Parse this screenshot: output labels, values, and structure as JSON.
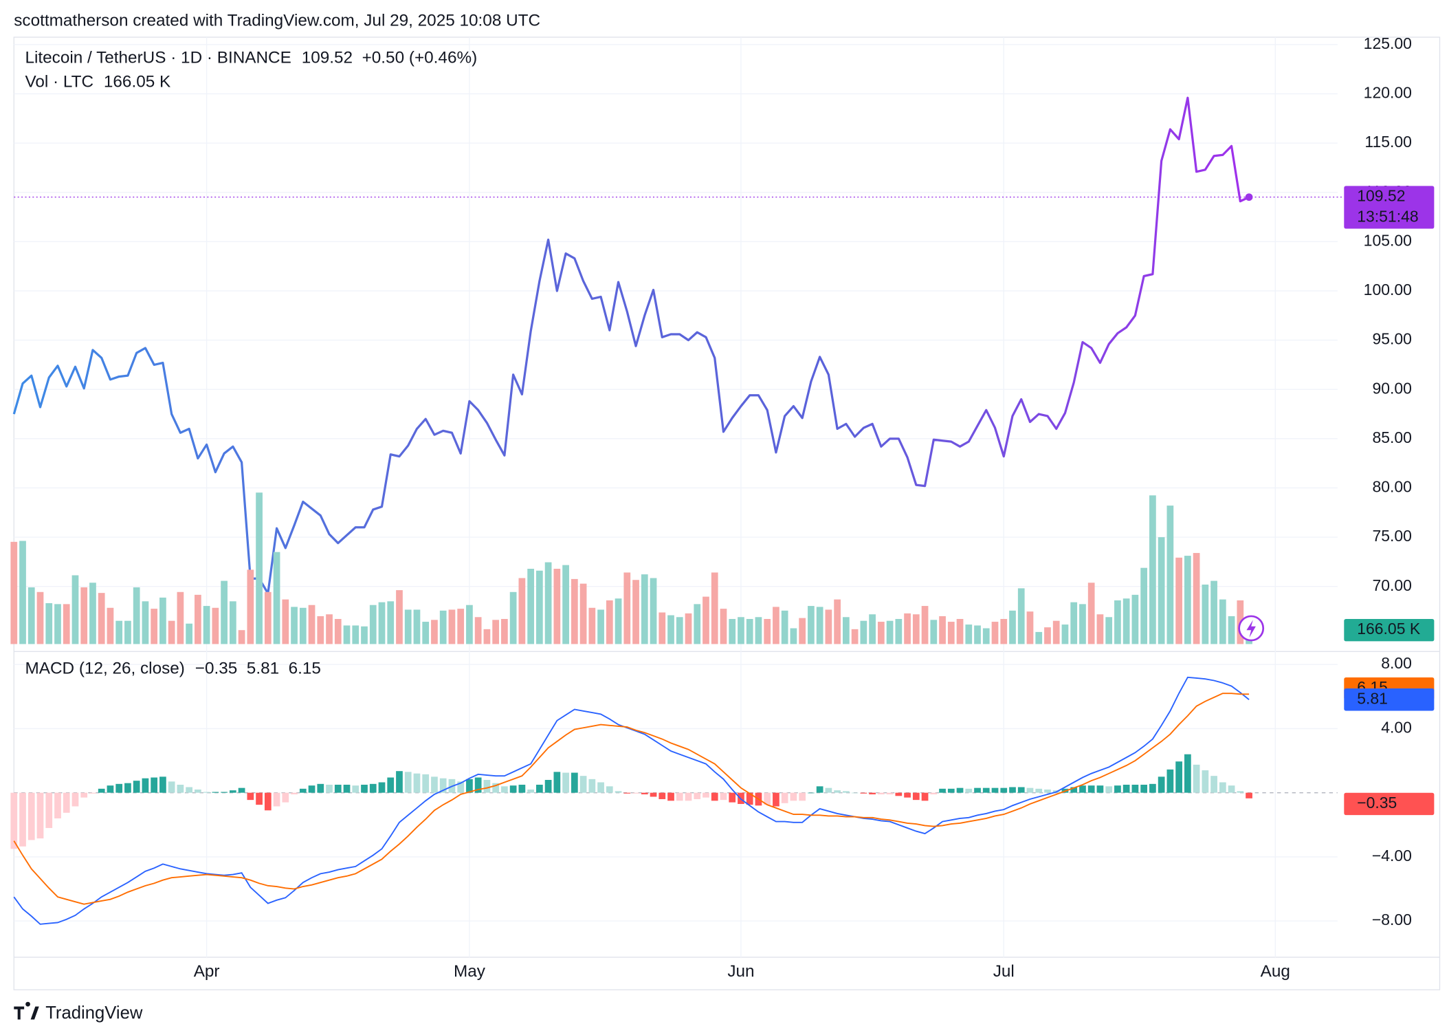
{
  "header": {
    "attribution": "scottmatherson created with TradingView.com, Jul 29, 2025 10:08 UTC"
  },
  "footer": {
    "brand": "TradingView"
  },
  "chart_data": [
    {
      "type": "line",
      "title": "Litecoin / TetherUS · 1D · BINANCE",
      "change": "+0.50 (+0.46%)",
      "countdown": "13:51:48",
      "line_colors": [
        "#3d8ae6",
        "#5b67da",
        "#5a62da",
        "#a12fec"
      ],
      "last_color": "#9c34e8",
      "values": [
        87.5,
        90.6,
        91.4,
        88.2,
        91.2,
        92.4,
        90.3,
        92.3,
        90.1,
        94.0,
        93.2,
        91.0,
        91.3,
        91.4,
        93.7,
        94.2,
        92.5,
        92.7,
        87.5,
        85.6,
        86.0,
        83.0,
        84.4,
        81.6,
        83.5,
        84.2,
        82.6,
        70.8,
        70.8,
        69.3,
        75.9,
        73.9,
        76.2,
        78.6,
        77.9,
        77.2,
        75.3,
        74.4,
        75.2,
        76.0,
        76.0,
        77.8,
        78.1,
        83.4,
        83.2,
        84.3,
        86.0,
        87.0,
        85.4,
        85.8,
        85.6,
        83.5,
        88.8,
        87.9,
        86.6,
        84.9,
        83.3,
        91.5,
        89.5,
        95.9,
        101.0,
        105.2,
        100.0,
        103.8,
        103.3,
        101.0,
        99.2,
        99.4,
        96.0,
        100.9,
        97.9,
        94.4,
        97.5,
        100.1,
        95.3,
        95.6,
        95.6,
        95.0,
        95.8,
        95.3,
        93.2,
        85.7,
        87.1,
        88.3,
        89.4,
        89.4,
        87.9,
        83.6,
        87.3,
        88.3,
        87.1,
        90.8,
        93.3,
        91.5,
        86.0,
        86.5,
        85.2,
        86.1,
        86.5,
        84.2,
        85.0,
        85.0,
        83.1,
        80.3,
        80.2,
        84.9,
        84.8,
        84.7,
        84.2,
        84.7,
        86.3,
        87.9,
        86.1,
        83.2,
        87.3,
        89.0,
        86.7,
        87.5,
        87.3,
        86.0,
        87.6,
        90.7,
        94.8,
        94.2,
        92.7,
        94.6,
        95.7,
        96.3,
        97.5,
        101.5,
        101.7,
        113.2,
        116.4,
        115.4,
        119.6,
        112.1,
        112.3,
        113.7,
        113.8,
        114.7,
        109.1,
        109.52
      ],
      "xlim": [
        0,
        151
      ],
      "xticks": [
        {
          "value": 22,
          "label": "Apr"
        },
        {
          "value": 52,
          "label": "May"
        },
        {
          "value": 83,
          "label": "Jun"
        },
        {
          "value": 113,
          "label": "Jul"
        },
        {
          "value": 144,
          "label": "Aug"
        }
      ],
      "ylim": [
        64.2,
        125.8
      ],
      "yticks": [
        {
          "value": 70,
          "label": "70.00"
        },
        {
          "value": 75,
          "label": "75.00"
        },
        {
          "value": 80,
          "label": "80.00"
        },
        {
          "value": 85,
          "label": "85.00"
        },
        {
          "value": 90,
          "label": "90.00"
        },
        {
          "value": 95,
          "label": "95.00"
        },
        {
          "value": 100,
          "label": "100.00"
        },
        {
          "value": 105,
          "label": "105.00"
        },
        {
          "value": 110,
          "label": "110.00"
        },
        {
          "value": 115,
          "label": "115.00"
        },
        {
          "value": 120,
          "label": "120.00"
        },
        {
          "value": 125,
          "label": "125.00"
        }
      ],
      "grid": true
    },
    {
      "type": "bar",
      "title": "Vol · LTC",
      "last_label": "166.05 K",
      "colors": {
        "up": "#92d4cc",
        "down": "#f6a8a6",
        "label": "#22ab94"
      },
      "values": [
        730.6,
        737.3,
        405.2,
        372.0,
        292.2,
        285.6,
        285.6,
        491.5,
        405.2,
        438.4,
        365.3,
        259.0,
        166.1,
        166.1,
        405.2,
        305.5,
        252.4,
        332.1,
        166.1,
        372.0,
        146.1,
        352.0,
        272.3,
        259.0,
        451.7,
        305.5,
        99.6,
        531.4,
        1082.6,
        372.0,
        657.6,
        318.8,
        265.7,
        259.0,
        279.0,
        199.3,
        212.5,
        179.3,
        132.8,
        132.8,
        126.2,
        279.0,
        298.9,
        305.5,
        385.2,
        245.8,
        245.8,
        159.4,
        172.7,
        239.1,
        245.8,
        252.4,
        279.0,
        192.6,
        106.3,
        172.7,
        179.3,
        372.0,
        471.6,
        538.0,
        524.7,
        584.5,
        538.0,
        564.6,
        464.9,
        431.7,
        259.0,
        245.8,
        312.2,
        325.5,
        511.4,
        458.3,
        498.2,
        471.6,
        225.8,
        205.9,
        192.6,
        219.2,
        285.6,
        338.7,
        511.4,
        252.4,
        179.3,
        192.6,
        179.3,
        192.6,
        179.3,
        265.7,
        239.1,
        112.9,
        186.0,
        272.3,
        265.7,
        245.8,
        318.8,
        192.6,
        106.3,
        166.1,
        212.5,
        159.4,
        166.1,
        179.3,
        219.2,
        212.5,
        272.3,
        172.7,
        199.3,
        159.4,
        179.3,
        139.5,
        132.8,
        112.9,
        159.4,
        179.3,
        239.1,
        398.5,
        232.5,
        86.3,
        119.6,
        166.1,
        139.5,
        298.9,
        285.6,
        438.4,
        212.5,
        192.6,
        312.2,
        325.5,
        352.0,
        544.6,
        1062.7,
        763.8,
        989.7,
        617.7,
        631.0,
        650.9,
        425.1,
        451.7,
        318.8,
        199.3,
        312.2,
        166.05
      ],
      "ylim": [
        0,
        1100
      ]
    },
    {
      "type": "macd",
      "title": "MACD (12, 26, close)",
      "last_label": "−0.35",
      "series": [
        {
          "color": "#2962ff",
          "values": [
            -6.5,
            -7.25,
            -7.7,
            -8.2,
            -8.15,
            -8.1,
            -7.9,
            -7.65,
            -7.25,
            -6.9,
            -6.5,
            -6.2,
            -5.9,
            -5.6,
            -5.25,
            -4.9,
            -4.7,
            -4.45,
            -4.6,
            -4.75,
            -4.85,
            -4.95,
            -5.05,
            -5.1,
            -5.15,
            -5.1,
            -5.0,
            -5.9,
            -6.4,
            -6.9,
            -6.7,
            -6.55,
            -6.1,
            -5.6,
            -5.3,
            -5.05,
            -4.95,
            -4.8,
            -4.7,
            -4.6,
            -4.25,
            -3.9,
            -3.5,
            -2.7,
            -1.85,
            -1.4,
            -0.95,
            -0.5,
            -0.1,
            0.15,
            0.4,
            0.6,
            0.9,
            1.15,
            1.1,
            1.05,
            1.05,
            1.3,
            1.55,
            1.8,
            2.7,
            3.6,
            4.5,
            4.85,
            5.2,
            5.1,
            5.0,
            4.9,
            4.6,
            4.25,
            4.05,
            3.85,
            3.65,
            3.3,
            2.95,
            2.6,
            2.4,
            2.2,
            2.0,
            1.8,
            1.3,
            0.85,
            0.2,
            -0.4,
            -0.8,
            -1.2,
            -1.5,
            -1.8,
            -1.8,
            -1.85,
            -1.85,
            -1.4,
            -1.0,
            -1.15,
            -1.3,
            -1.4,
            -1.5,
            -1.6,
            -1.65,
            -1.75,
            -1.8,
            -2.0,
            -2.2,
            -2.4,
            -2.55,
            -2.2,
            -1.8,
            -1.7,
            -1.6,
            -1.55,
            -1.4,
            -1.3,
            -1.15,
            -1.05,
            -0.8,
            -0.6,
            -0.4,
            -0.25,
            -0.1,
            0.05,
            0.35,
            0.65,
            0.95,
            1.2,
            1.4,
            1.6,
            1.9,
            2.2,
            2.5,
            2.9,
            3.35,
            4.2,
            5.1,
            6.2,
            7.2,
            7.15,
            7.1,
            7.0,
            6.85,
            6.65,
            6.25,
            5.81
          ]
        },
        {
          "color": "#ff6d00",
          "values": [
            -3.0,
            -3.9,
            -4.75,
            -5.35,
            -5.95,
            -6.5,
            -6.65,
            -6.8,
            -6.95,
            -6.85,
            -6.75,
            -6.65,
            -6.45,
            -6.2,
            -6.0,
            -5.8,
            -5.65,
            -5.45,
            -5.3,
            -5.25,
            -5.2,
            -5.15,
            -5.1,
            -5.15,
            -5.2,
            -5.25,
            -5.3,
            -5.45,
            -5.65,
            -5.8,
            -5.85,
            -5.95,
            -6.0,
            -5.85,
            -5.75,
            -5.6,
            -5.45,
            -5.3,
            -5.2,
            -5.05,
            -4.75,
            -4.45,
            -4.15,
            -3.65,
            -3.2,
            -2.7,
            -2.15,
            -1.65,
            -1.1,
            -0.75,
            -0.45,
            -0.1,
            0.05,
            0.2,
            0.3,
            0.45,
            0.65,
            0.85,
            1.05,
            1.6,
            2.2,
            2.8,
            3.2,
            3.6,
            3.95,
            4.05,
            4.15,
            4.25,
            4.2,
            4.15,
            4.1,
            3.9,
            3.75,
            3.55,
            3.35,
            3.1,
            2.9,
            2.7,
            2.4,
            2.1,
            1.8,
            1.3,
            0.8,
            0.3,
            -0.05,
            -0.4,
            -0.75,
            -0.95,
            -1.15,
            -1.35,
            -1.35,
            -1.4,
            -1.4,
            -1.45,
            -1.45,
            -1.5,
            -1.5,
            -1.55,
            -1.55,
            -1.65,
            -1.7,
            -1.8,
            -1.9,
            -1.95,
            -2.05,
            -2.1,
            -2.05,
            -1.95,
            -1.9,
            -1.8,
            -1.7,
            -1.6,
            -1.45,
            -1.35,
            -1.15,
            -0.95,
            -0.7,
            -0.5,
            -0.3,
            -0.1,
            0.1,
            0.3,
            0.5,
            0.75,
            0.95,
            1.2,
            1.45,
            1.7,
            2.0,
            2.4,
            2.8,
            3.2,
            3.65,
            4.25,
            4.8,
            5.4,
            5.7,
            5.95,
            6.2,
            6.2,
            6.15,
            6.15
          ]
        }
      ],
      "histogram": {
        "colors": [
          "#26a69a",
          "#b2dfdb",
          "#ffcdd2",
          "#ff5252"
        ],
        "values": [
          -3.5,
          -3.35,
          -2.95,
          -2.85,
          -2.2,
          -1.6,
          -1.25,
          -0.85,
          -0.3,
          -0.05,
          0.25,
          0.45,
          0.55,
          0.6,
          0.75,
          0.9,
          0.95,
          1.0,
          0.7,
          0.5,
          0.35,
          0.2,
          0.05,
          0.05,
          0.05,
          0.15,
          0.3,
          -0.45,
          -0.75,
          -1.1,
          -0.85,
          -0.6,
          -0.1,
          0.25,
          0.45,
          0.55,
          0.5,
          0.5,
          0.5,
          0.45,
          0.5,
          0.55,
          0.65,
          0.95,
          1.35,
          1.3,
          1.2,
          1.15,
          1.0,
          0.9,
          0.85,
          0.7,
          0.85,
          0.95,
          0.8,
          0.6,
          0.4,
          0.45,
          0.5,
          0.2,
          0.5,
          0.8,
          1.3,
          1.25,
          1.25,
          1.05,
          0.85,
          0.65,
          0.4,
          0.1,
          -0.05,
          -0.05,
          -0.1,
          -0.25,
          -0.4,
          -0.5,
          -0.5,
          -0.5,
          -0.4,
          -0.3,
          -0.5,
          -0.45,
          -0.6,
          -0.7,
          -0.75,
          -0.8,
          -0.75,
          -0.85,
          -0.65,
          -0.5,
          -0.5,
          0.0,
          0.4,
          0.3,
          0.15,
          0.1,
          0.0,
          -0.05,
          -0.1,
          -0.1,
          -0.1,
          -0.2,
          -0.3,
          -0.45,
          -0.5,
          -0.1,
          0.25,
          0.25,
          0.3,
          0.25,
          0.3,
          0.3,
          0.3,
          0.3,
          0.35,
          0.35,
          0.3,
          0.25,
          0.2,
          0.15,
          0.25,
          0.35,
          0.45,
          0.45,
          0.45,
          0.4,
          0.45,
          0.5,
          0.5,
          0.5,
          0.55,
          1.0,
          1.45,
          1.95,
          2.4,
          1.75,
          1.4,
          1.05,
          0.65,
          0.45,
          0.1,
          -0.35
        ]
      },
      "ylim": [
        -10.25,
        8.55
      ],
      "yticks": [
        {
          "value": -8,
          "label": "−8.00"
        },
        {
          "value": -4,
          "label": "−4.00"
        },
        {
          "value": 4,
          "label": "4.00"
        },
        {
          "value": 8,
          "label": "8.00"
        }
      ]
    }
  ]
}
